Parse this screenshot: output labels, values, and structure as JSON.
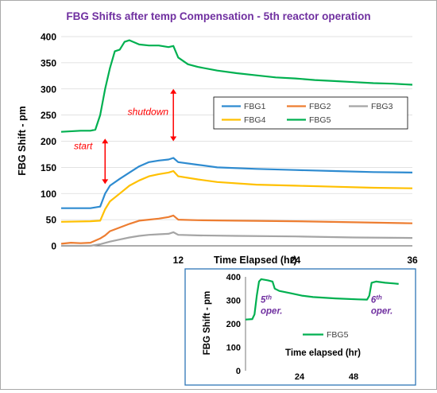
{
  "chart_data": [
    {
      "type": "line",
      "title": "FBG Shifts after temp Compensation  - 5th reactor operation",
      "title_color": "#7030a0",
      "xlabel": "Time Elapsed (hr)",
      "ylabel": "FBG Shift - pm",
      "xlim": [
        0,
        36
      ],
      "ylim": [
        0,
        400
      ],
      "x_ticks": [
        "12",
        "24",
        "36"
      ],
      "y_ticks": [
        "0",
        "50",
        "100",
        "150",
        "200",
        "250",
        "300",
        "350",
        "400"
      ],
      "grid": "horizontal",
      "legend_position": "inside right",
      "series": [
        {
          "name": "FBG1",
          "color": "#2e8bd0",
          "points": [
            [
              0,
              72
            ],
            [
              3,
              72
            ],
            [
              4,
              75
            ],
            [
              4.5,
              100
            ],
            [
              5,
              115
            ],
            [
              6,
              128
            ],
            [
              7,
              140
            ],
            [
              8,
              152
            ],
            [
              9,
              160
            ],
            [
              10,
              163
            ],
            [
              11,
              165
            ],
            [
              11.5,
              168
            ],
            [
              12,
              160
            ],
            [
              14,
              155
            ],
            [
              16,
              150
            ],
            [
              20,
              147
            ],
            [
              24,
              145
            ],
            [
              28,
              143
            ],
            [
              32,
              141
            ],
            [
              36,
              140
            ]
          ]
        },
        {
          "name": "FBG2",
          "color": "#ed7d31",
          "points": [
            [
              0,
              4
            ],
            [
              1,
              6
            ],
            [
              2,
              5
            ],
            [
              3,
              6
            ],
            [
              4,
              14
            ],
            [
              4.5,
              20
            ],
            [
              5,
              28
            ],
            [
              6,
              35
            ],
            [
              7,
              42
            ],
            [
              8,
              48
            ],
            [
              9,
              50
            ],
            [
              10,
              52
            ],
            [
              11,
              55
            ],
            [
              11.5,
              58
            ],
            [
              12,
              50
            ],
            [
              14,
              49
            ],
            [
              18,
              48
            ],
            [
              24,
              47
            ],
            [
              30,
              45
            ],
            [
              36,
              43
            ]
          ]
        },
        {
          "name": "FBG3",
          "color": "#a5a5a5",
          "points": [
            [
              0,
              0
            ],
            [
              3,
              0
            ],
            [
              4,
              3
            ],
            [
              5,
              8
            ],
            [
              6,
              12
            ],
            [
              7,
              16
            ],
            [
              8,
              19
            ],
            [
              9,
              21
            ],
            [
              10,
              22
            ],
            [
              11,
              23
            ],
            [
              11.5,
              26
            ],
            [
              12,
              21
            ],
            [
              14,
              20
            ],
            [
              18,
              19
            ],
            [
              24,
              18
            ],
            [
              30,
              16
            ],
            [
              36,
              15
            ]
          ]
        },
        {
          "name": "FBG4",
          "color": "#ffc000",
          "points": [
            [
              0,
              46
            ],
            [
              3,
              47
            ],
            [
              4,
              48
            ],
            [
              4.5,
              70
            ],
            [
              5,
              85
            ],
            [
              6,
              100
            ],
            [
              7,
              115
            ],
            [
              8,
              125
            ],
            [
              9,
              133
            ],
            [
              10,
              137
            ],
            [
              11,
              140
            ],
            [
              11.5,
              143
            ],
            [
              12,
              133
            ],
            [
              14,
              127
            ],
            [
              16,
              122
            ],
            [
              20,
              117
            ],
            [
              24,
              115
            ],
            [
              28,
              113
            ],
            [
              32,
              111
            ],
            [
              36,
              110
            ]
          ]
        },
        {
          "name": "FBG5",
          "color": "#00b050",
          "points": [
            [
              0,
              218
            ],
            [
              2,
              220
            ],
            [
              3,
              220
            ],
            [
              3.5,
              222
            ],
            [
              4,
              250
            ],
            [
              4.5,
              300
            ],
            [
              5,
              340
            ],
            [
              5.5,
              372
            ],
            [
              6,
              375
            ],
            [
              6.5,
              390
            ],
            [
              7,
              393
            ],
            [
              8,
              385
            ],
            [
              9,
              383
            ],
            [
              10,
              383
            ],
            [
              11,
              380
            ],
            [
              11.5,
              382
            ],
            [
              12,
              360
            ],
            [
              13,
              347
            ],
            [
              14,
              342
            ],
            [
              16,
              335
            ],
            [
              18,
              330
            ],
            [
              20,
              326
            ],
            [
              22,
              322
            ],
            [
              24,
              320
            ],
            [
              26,
              317
            ],
            [
              28,
              315
            ],
            [
              30,
              313
            ],
            [
              32,
              311
            ],
            [
              34,
              310
            ],
            [
              36,
              308
            ]
          ]
        }
      ],
      "annotations": [
        {
          "text": "start",
          "color": "#ff0000",
          "x": 3.2,
          "y": 185
        },
        {
          "text": "shutdown",
          "color": "#ff0000",
          "x": 11,
          "y": 250
        }
      ],
      "arrows": [
        {
          "x": 4.5,
          "y_from": 205,
          "y_to": 118,
          "color": "#ff0000"
        },
        {
          "x": 11.5,
          "y_from": 300,
          "y_to": 200,
          "color": "#ff0000"
        }
      ]
    },
    {
      "type": "line",
      "xlabel": "Time elapsed (hr)",
      "ylabel": "FBG Shift - pm",
      "xlim": [
        0,
        72
      ],
      "ylim": [
        0,
        400
      ],
      "x_ticks": [
        "24",
        "48"
      ],
      "y_ticks": [
        "0",
        "100",
        "200",
        "300",
        "400"
      ],
      "frame_color": "#2e75b6",
      "legend_position": "center",
      "series": [
        {
          "name": "FBG5",
          "color": "#00b050",
          "points": [
            [
              0,
              218
            ],
            [
              3,
              220
            ],
            [
              4,
              240
            ],
            [
              5,
              320
            ],
            [
              6,
              380
            ],
            [
              7,
              390
            ],
            [
              10,
              385
            ],
            [
              12,
              380
            ],
            [
              13,
              350
            ],
            [
              15,
              340
            ],
            [
              20,
              330
            ],
            [
              25,
              320
            ],
            [
              30,
              314
            ],
            [
              40,
              308
            ],
            [
              50,
              304
            ],
            [
              54,
              303
            ],
            [
              55,
              320
            ],
            [
              56,
              375
            ],
            [
              58,
              380
            ],
            [
              62,
              375
            ],
            [
              66,
              372
            ],
            [
              68,
              370
            ]
          ]
        }
      ],
      "annotations": [
        {
          "text": "5",
          "sup": "th",
          "line2": "oper.",
          "color": "#7030a0",
          "x": 6,
          "y": 290
        },
        {
          "text": "6",
          "sup": "th",
          "line2": "oper.",
          "color": "#7030a0",
          "x": 55,
          "y": 290
        }
      ]
    }
  ]
}
